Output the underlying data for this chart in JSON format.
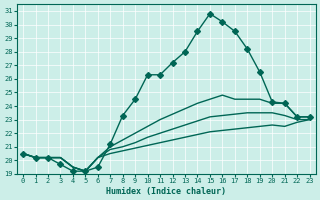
{
  "xlabel": "Humidex (Indice chaleur)",
  "ylabel": "",
  "bg_color": "#cceee8",
  "line_color": "#006655",
  "xlim": [
    -0.5,
    23.5
  ],
  "ylim": [
    19,
    31.5
  ],
  "yticks": [
    19,
    20,
    21,
    22,
    23,
    24,
    25,
    26,
    27,
    28,
    29,
    30,
    31
  ],
  "xticks": [
    0,
    1,
    2,
    3,
    4,
    5,
    6,
    7,
    8,
    9,
    10,
    11,
    12,
    13,
    14,
    15,
    16,
    17,
    18,
    19,
    20,
    21,
    22,
    23
  ],
  "series": [
    {
      "x": [
        0,
        1,
        2,
        3,
        4,
        5,
        6,
        7,
        8,
        9,
        10,
        11,
        12,
        13,
        14,
        15,
        16,
        17,
        18,
        19,
        20,
        21,
        22,
        23
      ],
      "y": [
        20.5,
        20.2,
        20.2,
        19.7,
        19.2,
        19.2,
        19.5,
        21.2,
        23.3,
        24.5,
        26.3,
        26.3,
        27.2,
        28.0,
        29.5,
        30.8,
        30.2,
        29.5,
        28.2,
        26.5,
        24.3,
        24.2,
        23.2,
        23.2
      ],
      "marker": "D",
      "markersize": 3
    },
    {
      "x": [
        0,
        1,
        2,
        3,
        4,
        5,
        6,
        7,
        8,
        9,
        10,
        11,
        12,
        13,
        14,
        15,
        16,
        17,
        18,
        19,
        20,
        21,
        22,
        23
      ],
      "y": [
        20.5,
        20.2,
        20.2,
        20.2,
        19.5,
        19.2,
        20.2,
        21.0,
        21.5,
        22.0,
        22.5,
        23.0,
        23.4,
        23.8,
        24.2,
        24.5,
        24.8,
        24.5,
        24.5,
        24.5,
        24.2,
        24.2,
        23.2,
        23.2
      ],
      "marker": null,
      "markersize": 0
    },
    {
      "x": [
        0,
        1,
        2,
        3,
        4,
        5,
        6,
        7,
        8,
        9,
        10,
        11,
        12,
        13,
        14,
        15,
        16,
        17,
        18,
        19,
        20,
        21,
        22,
        23
      ],
      "y": [
        20.5,
        20.2,
        20.2,
        20.2,
        19.5,
        19.2,
        20.2,
        20.8,
        21.0,
        21.3,
        21.7,
        22.0,
        22.3,
        22.6,
        22.9,
        23.2,
        23.3,
        23.4,
        23.5,
        23.5,
        23.5,
        23.3,
        23.0,
        23.0
      ],
      "marker": null,
      "markersize": 0
    },
    {
      "x": [
        0,
        1,
        2,
        3,
        4,
        5,
        6,
        7,
        8,
        9,
        10,
        11,
        12,
        13,
        14,
        15,
        16,
        17,
        18,
        19,
        20,
        21,
        22,
        23
      ],
      "y": [
        20.5,
        20.2,
        20.2,
        20.2,
        19.5,
        19.2,
        20.2,
        20.5,
        20.7,
        20.9,
        21.1,
        21.3,
        21.5,
        21.7,
        21.9,
        22.1,
        22.2,
        22.3,
        22.4,
        22.5,
        22.6,
        22.5,
        22.8,
        23.0
      ],
      "marker": null,
      "markersize": 0
    }
  ]
}
